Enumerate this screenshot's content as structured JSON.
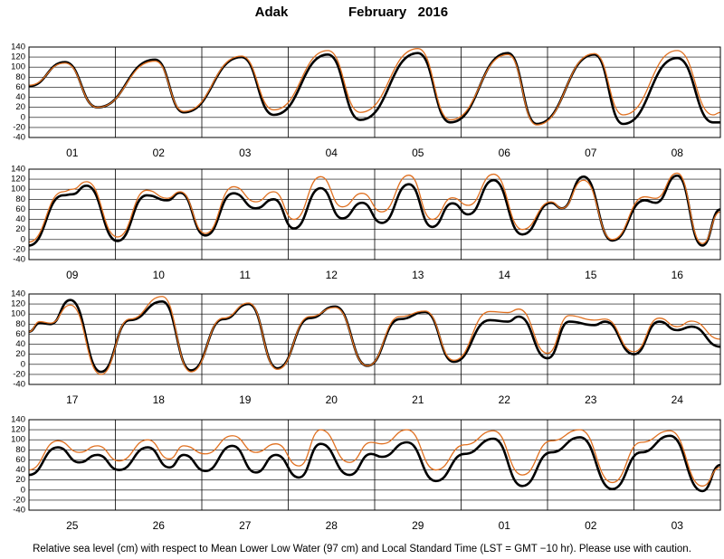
{
  "title": "Adak",
  "subtitle": "February   2016",
  "note": "Relative sea level (cm) with respect to Mean Lower Low Water (97 cm) and Local Standard Time (LST = GMT −10 hr). Please use with caution.",
  "chart_data": [
    {
      "type": "line",
      "categories": [
        "01",
        "02",
        "03",
        "04",
        "05",
        "06",
        "07",
        "08"
      ],
      "x": [
        0,
        10,
        19,
        35,
        43,
        59,
        68,
        83,
        92,
        108,
        117,
        133,
        141,
        157,
        165,
        180,
        190,
        192
      ],
      "xlim": [
        0,
        192
      ],
      "ylim": [
        -40,
        140
      ],
      "yticks": [
        -40,
        -20,
        0,
        20,
        40,
        60,
        80,
        100,
        120,
        140
      ],
      "grid": true,
      "series": [
        {
          "color": "#000000",
          "values": [
            62,
            110,
            20,
            115,
            10,
            120,
            5,
            125,
            -5,
            128,
            -10,
            128,
            -13,
            125,
            -13,
            118,
            -10,
            -10
          ]
        },
        {
          "color": "#e07020",
          "values": [
            64,
            108,
            20,
            112,
            12,
            122,
            15,
            133,
            10,
            137,
            -5,
            125,
            -15,
            127,
            5,
            133,
            5,
            10
          ]
        }
      ]
    },
    {
      "type": "line",
      "categories": [
        "09",
        "10",
        "11",
        "12",
        "13",
        "14",
        "15",
        "16"
      ],
      "x": [
        0,
        9.5,
        12,
        16,
        24.6,
        32.7,
        38.4,
        42,
        49,
        56.8,
        63,
        68,
        73.6,
        81,
        87,
        92.5,
        98,
        105.5,
        112,
        117.6,
        122,
        129,
        137,
        145,
        148,
        154,
        162,
        171,
        174,
        180,
        187,
        192
      ],
      "xlim": [
        0,
        192
      ],
      "ylim": [
        -40,
        140
      ],
      "yticks": [
        -40,
        -20,
        0,
        20,
        40,
        60,
        80,
        100,
        120,
        140
      ],
      "grid": true,
      "series": [
        {
          "color": "#000000",
          "values": [
            -12,
            88,
            90,
            107,
            -3,
            88,
            78,
            93,
            8,
            92,
            62,
            80,
            22,
            102,
            42,
            73,
            33,
            110,
            25,
            72,
            50,
            118,
            10,
            73,
            62,
            125,
            -2,
            78,
            73,
            127,
            -12,
            60
          ]
        },
        {
          "color": "#e07020",
          "values": [
            -5,
            95,
            100,
            115,
            5,
            98,
            82,
            95,
            12,
            105,
            75,
            95,
            40,
            125,
            65,
            92,
            55,
            128,
            40,
            83,
            68,
            130,
            20,
            75,
            62,
            118,
            0,
            85,
            82,
            132,
            -8,
            55
          ]
        }
      ]
    },
    {
      "type": "line",
      "categories": [
        "17",
        "18",
        "19",
        "20",
        "21",
        "22",
        "23",
        "24"
      ],
      "x": [
        0,
        3,
        6,
        11.5,
        20,
        28,
        37,
        45,
        54,
        61,
        69,
        78,
        85,
        94,
        103,
        110,
        118,
        128,
        133,
        136,
        144,
        150,
        157,
        160,
        168,
        175,
        180,
        184,
        192
      ],
      "xlim": [
        0,
        192
      ],
      "ylim": [
        -40,
        140
      ],
      "yticks": [
        -40,
        -20,
        0,
        20,
        40,
        60,
        80,
        100,
        120,
        140
      ],
      "grid": true,
      "series": [
        {
          "color": "#000000",
          "values": [
            65,
            82,
            80,
            128,
            -15,
            88,
            125,
            -12,
            90,
            120,
            -8,
            92,
            115,
            -3,
            90,
            104,
            5,
            88,
            85,
            95,
            12,
            85,
            78,
            85,
            20,
            85,
            68,
            75,
            35
          ]
        },
        {
          "color": "#e07020",
          "values": [
            65,
            85,
            82,
            118,
            -20,
            90,
            135,
            -15,
            92,
            122,
            -10,
            95,
            113,
            -3,
            95,
            106,
            8,
            105,
            103,
            110,
            22,
            97,
            88,
            90,
            25,
            92,
            75,
            86,
            50
          ]
        }
      ]
    },
    {
      "type": "line",
      "categories": [
        "25",
        "26",
        "27",
        "28",
        "29",
        "01",
        "02",
        "03"
      ],
      "x": [
        0,
        8,
        14,
        19,
        25,
        33,
        39,
        43,
        49,
        56.5,
        63,
        68.6,
        75,
        81,
        89,
        95,
        98,
        105,
        113,
        121,
        129,
        137,
        145,
        153,
        162,
        170,
        178,
        187,
        192
      ],
      "xlim": [
        0,
        192
      ],
      "ylim": [
        -40,
        140
      ],
      "yticks": [
        -40,
        -20,
        0,
        20,
        40,
        60,
        80,
        100,
        120,
        140
      ],
      "grid": true,
      "series": [
        {
          "color": "#000000",
          "values": [
            30,
            85,
            55,
            70,
            40,
            85,
            45,
            70,
            38,
            88,
            35,
            70,
            25,
            92,
            30,
            72,
            66,
            95,
            18,
            72,
            102,
            8,
            75,
            105,
            2,
            75,
            108,
            -2,
            50
          ]
        },
        {
          "color": "#e07020",
          "values": [
            40,
            98,
            75,
            88,
            58,
            100,
            62,
            88,
            72,
            108,
            75,
            92,
            48,
            120,
            55,
            95,
            92,
            120,
            40,
            90,
            118,
            30,
            98,
            120,
            15,
            95,
            118,
            8,
            45
          ]
        }
      ]
    }
  ]
}
